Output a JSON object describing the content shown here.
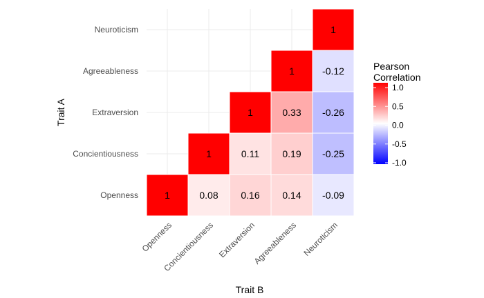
{
  "chart_data": {
    "type": "heatmap",
    "xlabel": "Trait B",
    "ylabel": "Trait A",
    "x_categories": [
      "Openness",
      "Concientiousness",
      "Extraversion",
      "Agreeableness",
      "Neuroticism"
    ],
    "y_categories": [
      "Openness",
      "Concientiousness",
      "Extraversion",
      "Agreeableness",
      "Neuroticism"
    ],
    "cells": [
      {
        "x": "Openness",
        "y": "Openness",
        "value": 1,
        "label": "1"
      },
      {
        "x": "Concientiousness",
        "y": "Openness",
        "value": 0.08,
        "label": "0.08"
      },
      {
        "x": "Extraversion",
        "y": "Openness",
        "value": 0.16,
        "label": "0.16"
      },
      {
        "x": "Agreeableness",
        "y": "Openness",
        "value": 0.14,
        "label": "0.14"
      },
      {
        "x": "Neuroticism",
        "y": "Openness",
        "value": -0.09,
        "label": "-0.09"
      },
      {
        "x": "Concientiousness",
        "y": "Concientiousness",
        "value": 1,
        "label": "1"
      },
      {
        "x": "Extraversion",
        "y": "Concientiousness",
        "value": 0.11,
        "label": "0.11"
      },
      {
        "x": "Agreeableness",
        "y": "Concientiousness",
        "value": 0.19,
        "label": "0.19"
      },
      {
        "x": "Neuroticism",
        "y": "Concientiousness",
        "value": -0.25,
        "label": "-0.25"
      },
      {
        "x": "Extraversion",
        "y": "Extraversion",
        "value": 1,
        "label": "1"
      },
      {
        "x": "Agreeableness",
        "y": "Extraversion",
        "value": 0.33,
        "label": "0.33"
      },
      {
        "x": "Neuroticism",
        "y": "Extraversion",
        "value": -0.26,
        "label": "-0.26"
      },
      {
        "x": "Agreeableness",
        "y": "Agreeableness",
        "value": 1,
        "label": "1"
      },
      {
        "x": "Neuroticism",
        "y": "Agreeableness",
        "value": -0.12,
        "label": "-0.12"
      },
      {
        "x": "Neuroticism",
        "y": "Neuroticism",
        "value": 1,
        "label": "1"
      }
    ],
    "legend": {
      "title_lines": [
        "Pearson",
        "Correlation"
      ],
      "ticks": [
        "1.0",
        "0.5",
        "0.0",
        "-0.5",
        "-1.0"
      ],
      "tick_values": [
        1,
        0.5,
        0,
        -0.5,
        -1
      ],
      "range": [
        -1,
        1
      ],
      "placement": "right"
    },
    "colors": {
      "low": "#0000ff",
      "mid": "#ffffff",
      "high": "#ff0000"
    },
    "grid": true
  }
}
